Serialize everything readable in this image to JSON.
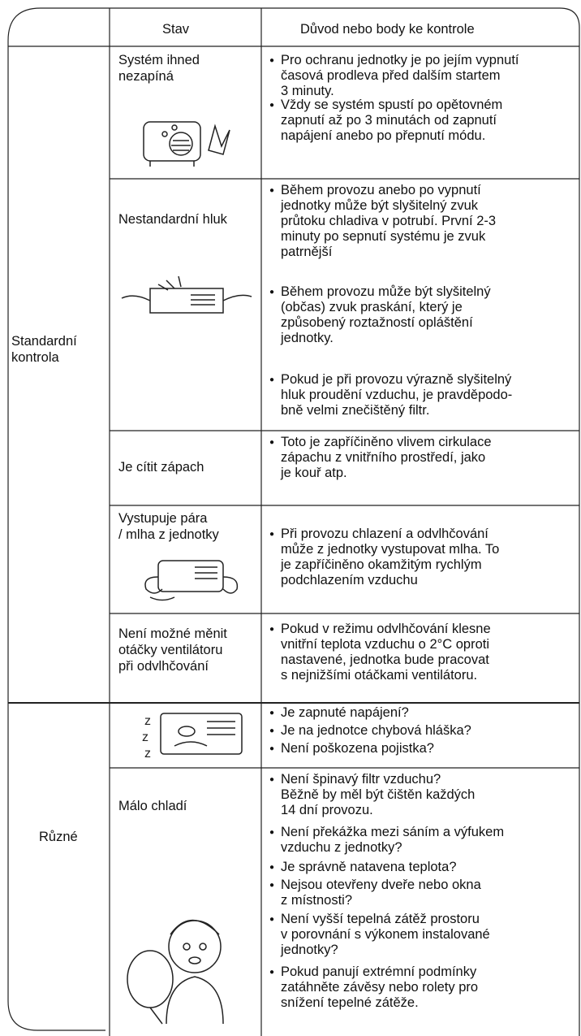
{
  "header": {
    "columns": [
      "Stav",
      "Důvod nebo body ke kontrole"
    ]
  },
  "groups": [
    {
      "label": [
        "Standardní",
        "kontrola"
      ],
      "rows": [
        {
          "state": [
            "Systém ihned",
            "nezapíná"
          ],
          "bullets": [
            [
              "Pro ochranu jednotky je po jejím vypnutí",
              "časová prodleva před dalším startem",
              "3 minuty."
            ],
            [
              "Vždy se systém spustí po opětovném",
              "zapnutí až po 3 minutách od zapnutí",
              "napájení anebo po přepnutí módu."
            ]
          ]
        },
        {
          "state": [
            "Nestandardní hluk"
          ],
          "bullets": [
            [
              "Během provozu anebo po vypnutí",
              "jednotky může být slyšitelný zvuk",
              "průtoku chladiva v potrubí. První 2-3",
              "minuty po sepnutí systému je zvuk",
              "patrnější"
            ],
            [
              "Během provozu může být slyšitelný",
              "(občas) zvuk praskání, který je",
              "způsobený roztažností opláštění",
              "jednotky."
            ],
            [
              "Pokud je při provozu výrazně slyšitelný",
              "hluk proudění vzduchu, je pravděpodo-",
              "bně velmi znečištěný filtr."
            ]
          ]
        },
        {
          "state": [
            "Je cítit zápach"
          ],
          "bullets": [
            [
              "Toto je zapříčiněno vlivem cirkulace",
              "zápachu z vnitřního prostředí, jako",
              "je kouř atp."
            ]
          ]
        },
        {
          "state": [
            "Vystupuje pára",
            "/ mlha z jednotky"
          ],
          "bullets": [
            [
              "Při provozu chlazení a odvlhčování",
              "může z jednotky vystupovat mlha. To",
              "je zapříčiněno okamžitým rychlým",
              "podchlazením vzduchu"
            ]
          ]
        },
        {
          "state": [
            "Není možné měnit",
            "otáčky ventilátoru",
            "při odvlhčování"
          ],
          "bullets": [
            [
              "Pokud v režimu odvlhčování klesne",
              "vnitřní teplota vzduchu o 2°C oproti",
              "nastavené, jednotka bude pracovat",
              "s nejnižšími otáčkami ventilátoru."
            ]
          ]
        }
      ]
    },
    {
      "label": [
        "Různé"
      ],
      "rows": [
        {
          "state": null,
          "bullets": [
            [
              "Je zapnuté napájení?"
            ],
            [
              "Je na jednotce chybová hláška?"
            ],
            [
              "Není poškozena pojistka?"
            ]
          ]
        },
        {
          "state": [
            "Málo chladí"
          ],
          "bullets": [
            [
              "Není špinavý filtr vzduchu?",
              "Běžně by měl být čištěn každých",
              "14 dní provozu."
            ],
            [
              "Není překážka mezi sáním a výfukem",
              "vzduchu z jednotky?"
            ],
            [
              "Je správně natavena teplota?"
            ],
            [
              "Nejsou otevřeny dveře nebo okna",
              "z místnosti?"
            ],
            [
              "Není vyšší tepelná zátěž prostoru",
              "v porovnání s výkonem instalované",
              "jednotky?"
            ],
            [
              "Pokud panují extrémní podmínky",
              "zatáhněte závěsy nebo rolety pro",
              "snížení tepelné zátěže."
            ]
          ]
        }
      ]
    }
  ]
}
